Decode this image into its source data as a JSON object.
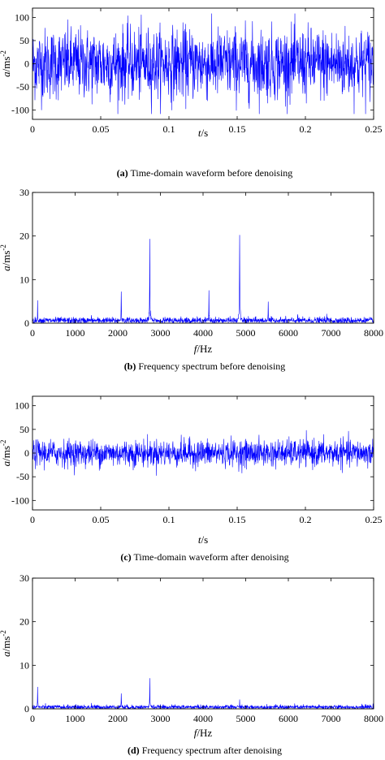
{
  "chart_data": [
    {
      "type": "line",
      "panel": "a",
      "caption_label": "(a)",
      "caption_text": " Time-domain waveform before denoising",
      "xlabel_italic": "t",
      "xlabel_unit": "/s",
      "ylabel_italic": "a",
      "ylabel_unit": "/ms",
      "ylabel_exp": "-2",
      "xlim": [
        0,
        0.25
      ],
      "ylim": [
        -120,
        120
      ],
      "xticks": [
        "0",
        "0.05",
        "0.1",
        "0.15",
        "0.2",
        "0.25"
      ],
      "xtick_values": [
        0,
        0.05,
        0.1,
        0.15,
        0.2,
        0.25
      ],
      "yticks": [
        "100",
        "50",
        "0",
        "-50",
        "-100"
      ],
      "ytick_values": [
        100,
        50,
        0,
        -50,
        -100
      ],
      "signal": {
        "kind": "noise",
        "amplitude_std": 38,
        "peak": 108
      },
      "color": "#0000ff"
    },
    {
      "type": "line",
      "panel": "b",
      "caption_label": "(b)",
      "caption_text": " Frequency spectrum before denoising",
      "xlabel_italic": "f",
      "xlabel_unit": "/Hz",
      "ylabel_italic": "a",
      "ylabel_unit": "/ms",
      "ylabel_exp": "-2",
      "xlim": [
        0,
        8000
      ],
      "ylim": [
        0,
        30
      ],
      "xticks": [
        "0",
        "1000",
        "2000",
        "3000",
        "4000",
        "5000",
        "6000",
        "7000",
        "8000"
      ],
      "xtick_values": [
        0,
        1000,
        2000,
        3000,
        4000,
        5000,
        6000,
        7000,
        8000
      ],
      "yticks": [
        "30",
        "20",
        "10",
        "0"
      ],
      "ytick_values": [
        30,
        20,
        10,
        0
      ],
      "signal": {
        "kind": "spectrum",
        "baseline": 0.6,
        "peaks": [
          {
            "f": 120,
            "a": 5.2
          },
          {
            "f": 1380,
            "a": 1.8
          },
          {
            "f": 2080,
            "a": 7.2
          },
          {
            "f": 2750,
            "a": 19.3
          },
          {
            "f": 3480,
            "a": 1.5
          },
          {
            "f": 4140,
            "a": 7.5
          },
          {
            "f": 4860,
            "a": 20.2
          },
          {
            "f": 5530,
            "a": 4.9
          },
          {
            "f": 6220,
            "a": 2.0
          },
          {
            "f": 6900,
            "a": 2.1
          }
        ]
      },
      "color": "#0000ff"
    },
    {
      "type": "line",
      "panel": "c",
      "caption_label": "(c)",
      "caption_text": " Time-domain waveform after denoising",
      "xlabel_italic": "t",
      "xlabel_unit": "/s",
      "ylabel_italic": "a",
      "ylabel_unit": "/ms",
      "ylabel_exp": "-2",
      "xlim": [
        0,
        0.25
      ],
      "ylim": [
        -120,
        120
      ],
      "xticks": [
        "0",
        "0.05",
        "0.1",
        "0.15",
        "0.2",
        "0.25"
      ],
      "xtick_values": [
        0,
        0.05,
        0.1,
        0.15,
        0.2,
        0.25
      ],
      "yticks": [
        "100",
        "50",
        "0",
        "-50",
        "-100"
      ],
      "ytick_values": [
        100,
        50,
        0,
        -50,
        -100
      ],
      "signal": {
        "kind": "noise",
        "amplitude_std": 14,
        "peak": 48
      },
      "color": "#0000ff"
    },
    {
      "type": "line",
      "panel": "d",
      "caption_label": "(d)",
      "caption_text": " Frequency spectrum after denoising",
      "xlabel_italic": "f",
      "xlabel_unit": "/Hz",
      "ylabel_italic": "a",
      "ylabel_unit": "/ms",
      "ylabel_exp": "-2",
      "xlim": [
        0,
        8000
      ],
      "ylim": [
        0,
        30
      ],
      "xticks": [
        "0",
        "1000",
        "2000",
        "3000",
        "4000",
        "5000",
        "6000",
        "7000",
        "8000"
      ],
      "xtick_values": [
        0,
        1000,
        2000,
        3000,
        4000,
        5000,
        6000,
        7000,
        8000
      ],
      "yticks": [
        "30",
        "20",
        "10",
        "0"
      ],
      "ytick_values": [
        30,
        20,
        10,
        0
      ],
      "signal": {
        "kind": "spectrum",
        "baseline": 0.4,
        "peaks": [
          {
            "f": 120,
            "a": 5.0
          },
          {
            "f": 1380,
            "a": 1.3
          },
          {
            "f": 2080,
            "a": 3.5
          },
          {
            "f": 2750,
            "a": 7.0
          },
          {
            "f": 4860,
            "a": 2.1
          }
        ]
      },
      "color": "#0000ff"
    }
  ]
}
